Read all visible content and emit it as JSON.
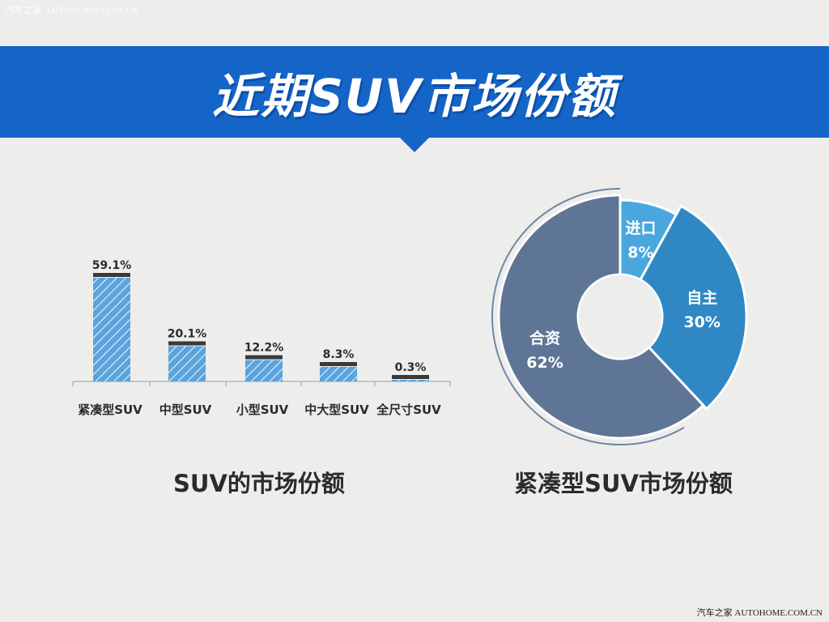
{
  "watermark_top": "汽车之家 AUTOHOME.COM.CN",
  "watermark_bottom": "汽车之家 AUTOHOME.COM.CN",
  "banner": {
    "title": "近期SUV市场份额"
  },
  "colors": {
    "banner": "#1565c8",
    "bar_fill": "#5ba3dc",
    "bar_cap": "#3a3a3a",
    "donut_hezi": "#5f7596",
    "donut_zizhu": "#2f88c4",
    "donut_jinkou": "#4aa7de",
    "ring": "#6f86a6"
  },
  "chart_data": [
    {
      "type": "bar",
      "title": "SUV的市场份额",
      "categories": [
        "紧凑型SUV",
        "中型SUV",
        "小型SUV",
        "中大型SUV",
        "全尺寸SUV"
      ],
      "values": [
        59.1,
        20.1,
        12.2,
        8.3,
        0.3
      ],
      "value_labels": [
        "59.1%",
        "20.1%",
        "12.2%",
        "8.3%",
        "0.3%"
      ],
      "ylim": [
        0,
        60
      ],
      "grid": false,
      "legend": "none"
    },
    {
      "type": "pie",
      "title": "紧凑型SUV市场份额",
      "categories": [
        "进口",
        "自主",
        "合资"
      ],
      "values": [
        8,
        30,
        62
      ],
      "value_labels": [
        "8%",
        "30%",
        "62%"
      ],
      "legend": "none"
    }
  ]
}
